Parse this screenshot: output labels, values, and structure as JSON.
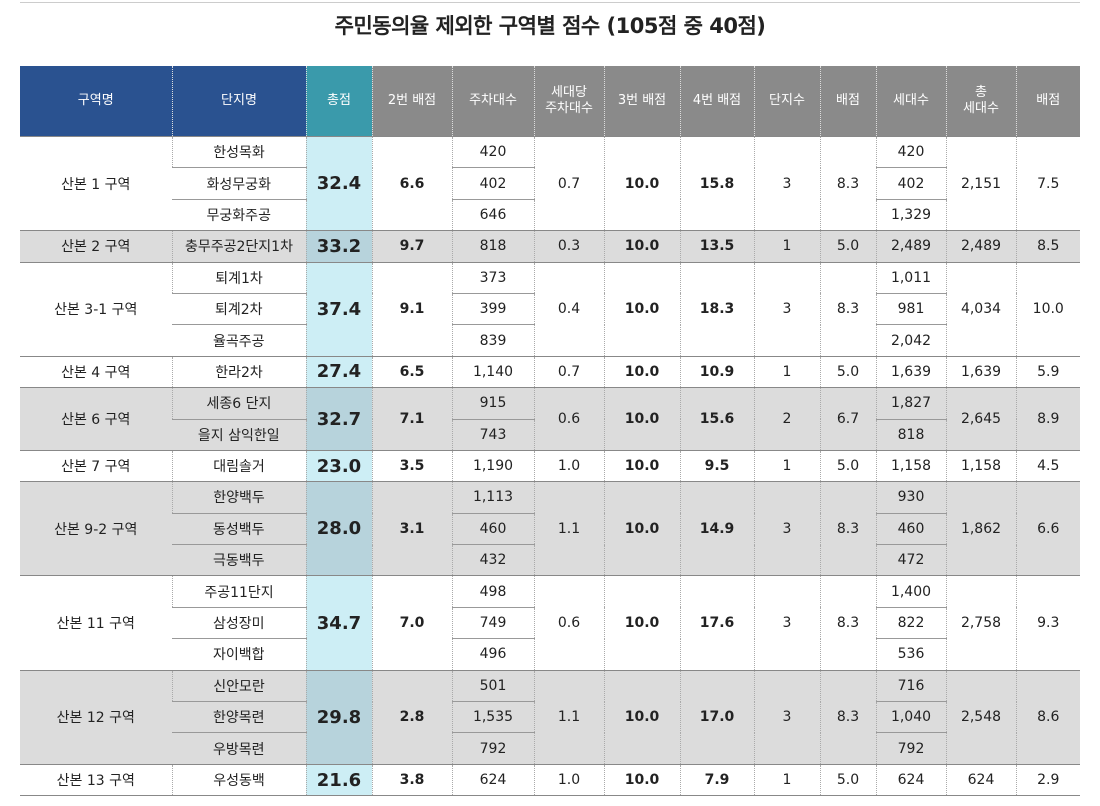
{
  "title": "주민동의율 제외한 구역별 점수 (105점 중 40점)",
  "table": {
    "columns": [
      "구역명",
      "단지명",
      "총점",
      "2번 배점",
      "주차대수",
      "세대당\n주차대수",
      "3번 배점",
      "4번 배점",
      "단지수",
      "배점",
      "세대수",
      "총\n세대수",
      "배점"
    ],
    "groups": [
      {
        "district": "산본 1 구역",
        "shaded": false,
        "total": "32.4",
        "score2": "6.6",
        "per_household": "0.7",
        "score3": "10.0",
        "score4": "15.8",
        "complex_count": "3",
        "score_count": "8.3",
        "total_households": "2,151",
        "score_households": "7.5",
        "complexes": [
          {
            "name": "한성목화",
            "parking": "420",
            "households": "420"
          },
          {
            "name": "화성무궁화",
            "parking": "402",
            "households": "402"
          },
          {
            "name": "무궁화주공",
            "parking": "646",
            "households": "1,329"
          }
        ]
      },
      {
        "district": "산본 2 구역",
        "shaded": true,
        "total": "33.2",
        "score2": "9.7",
        "per_household": "0.3",
        "score3": "10.0",
        "score4": "13.5",
        "complex_count": "1",
        "score_count": "5.0",
        "total_households": "2,489",
        "score_households": "8.5",
        "complexes": [
          {
            "name": "충무주공2단지1차",
            "parking": "818",
            "households": "2,489"
          }
        ]
      },
      {
        "district": "산본 3-1 구역",
        "shaded": false,
        "total": "37.4",
        "score2": "9.1",
        "per_household": "0.4",
        "score3": "10.0",
        "score4": "18.3",
        "complex_count": "3",
        "score_count": "8.3",
        "total_households": "4,034",
        "score_households": "10.0",
        "complexes": [
          {
            "name": "퇴계1차",
            "parking": "373",
            "households": "1,011"
          },
          {
            "name": "퇴계2차",
            "parking": "399",
            "households": "981"
          },
          {
            "name": "율곡주공",
            "parking": "839",
            "households": "2,042"
          }
        ]
      },
      {
        "district": "산본 4 구역",
        "shaded": false,
        "total": "27.4",
        "score2": "6.5",
        "per_household": "0.7",
        "score3": "10.0",
        "score4": "10.9",
        "complex_count": "1",
        "score_count": "5.0",
        "total_households": "1,639",
        "score_households": "5.9",
        "complexes": [
          {
            "name": "한라2차",
            "parking": "1,140",
            "households": "1,639"
          }
        ]
      },
      {
        "district": "산본 6 구역",
        "shaded": true,
        "total": "32.7",
        "score2": "7.1",
        "per_household": "0.6",
        "score3": "10.0",
        "score4": "15.6",
        "complex_count": "2",
        "score_count": "6.7",
        "total_households": "2,645",
        "score_households": "8.9",
        "complexes": [
          {
            "name": "세종6 단지",
            "parking": "915",
            "households": "1,827"
          },
          {
            "name": "을지 삼익한일",
            "parking": "743",
            "households": "818"
          }
        ]
      },
      {
        "district": "산본 7 구역",
        "shaded": false,
        "total": "23.0",
        "score2": "3.5",
        "per_household": "1.0",
        "score3": "10.0",
        "score4": "9.5",
        "complex_count": "1",
        "score_count": "5.0",
        "total_households": "1,158",
        "score_households": "4.5",
        "complexes": [
          {
            "name": "대림솔거",
            "parking": "1,190",
            "households": "1,158"
          }
        ]
      },
      {
        "district": "산본 9-2 구역",
        "shaded": true,
        "total": "28.0",
        "score2": "3.1",
        "per_household": "1.1",
        "score3": "10.0",
        "score4": "14.9",
        "complex_count": "3",
        "score_count": "8.3",
        "total_households": "1,862",
        "score_households": "6.6",
        "complexes": [
          {
            "name": "한양백두",
            "parking": "1,113",
            "households": "930"
          },
          {
            "name": "동성백두",
            "parking": "460",
            "households": "460"
          },
          {
            "name": "극동백두",
            "parking": "432",
            "households": "472"
          }
        ]
      },
      {
        "district": "산본 11 구역",
        "shaded": false,
        "total": "34.7",
        "score2": "7.0",
        "per_household": "0.6",
        "score3": "10.0",
        "score4": "17.6",
        "complex_count": "3",
        "score_count": "8.3",
        "total_households": "2,758",
        "score_households": "9.3",
        "complexes": [
          {
            "name": "주공11단지",
            "parking": "498",
            "households": "1,400"
          },
          {
            "name": "삼성장미",
            "parking": "749",
            "households": "822"
          },
          {
            "name": "자이백합",
            "parking": "496",
            "households": "536"
          }
        ]
      },
      {
        "district": "산본 12 구역",
        "shaded": true,
        "total": "29.8",
        "score2": "2.8",
        "per_household": "1.1",
        "score3": "10.0",
        "score4": "17.0",
        "complex_count": "3",
        "score_count": "8.3",
        "total_households": "2,548",
        "score_households": "8.6",
        "complexes": [
          {
            "name": "신안모란",
            "parking": "501",
            "households": "716"
          },
          {
            "name": "한양목련",
            "parking": "1,535",
            "households": "1,040"
          },
          {
            "name": "우방목련",
            "parking": "792",
            "households": "792"
          }
        ]
      },
      {
        "district": "산본 13 구역",
        "shaded": false,
        "total": "21.6",
        "score2": "3.8",
        "per_household": "1.0",
        "score3": "10.0",
        "score4": "7.9",
        "complex_count": "1",
        "score_count": "5.0",
        "total_households": "624",
        "score_households": "2.9",
        "complexes": [
          {
            "name": "우성동백",
            "parking": "624",
            "households": "624"
          }
        ]
      }
    ]
  }
}
